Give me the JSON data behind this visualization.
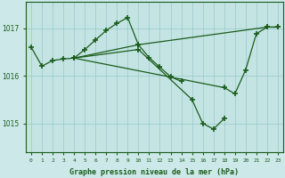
{
  "title": "Graphe pression niveau de la mer (hPa)",
  "bg_color": "#cce8e8",
  "plot_bg_color": "#c4e4e4",
  "grid_color": "#98c8c8",
  "line_color": "#1a5c1a",
  "xlim": [
    -0.5,
    23.5
  ],
  "ylim": [
    1014.4,
    1017.55
  ],
  "yticks": [
    1015,
    1016,
    1017
  ],
  "xticks": [
    0,
    1,
    2,
    3,
    4,
    5,
    6,
    7,
    8,
    9,
    10,
    11,
    12,
    13,
    14,
    15,
    16,
    17,
    18,
    19,
    20,
    21,
    22,
    23
  ],
  "series": [
    {
      "points": [
        [
          0,
          1016.6
        ],
        [
          1,
          1016.2
        ],
        [
          2,
          1016.32
        ],
        [
          3,
          1016.35
        ],
        [
          4,
          1016.37
        ]
      ]
    },
    {
      "points": [
        [
          4,
          1016.37
        ],
        [
          5,
          1016.55
        ],
        [
          6,
          1016.75
        ],
        [
          7,
          1016.95
        ],
        [
          8,
          1017.1
        ],
        [
          9,
          1017.22
        ],
        [
          10,
          1016.65
        ]
      ]
    },
    {
      "points": [
        [
          4,
          1016.37
        ],
        [
          10,
          1016.65
        ],
        [
          11,
          1016.38
        ],
        [
          12,
          1016.18
        ],
        [
          13,
          1015.98
        ],
        [
          14,
          1015.88
        ]
      ]
    },
    {
      "points": [
        [
          4,
          1016.37
        ],
        [
          10,
          1016.55
        ],
        [
          15,
          1015.5
        ],
        [
          16,
          1015.0
        ],
        [
          17,
          1014.88
        ],
        [
          18,
          1015.1
        ]
      ]
    },
    {
      "points": [
        [
          4,
          1016.37
        ],
        [
          18,
          1015.75
        ],
        [
          19,
          1015.62
        ],
        [
          20,
          1016.12
        ],
        [
          21,
          1016.88
        ],
        [
          22,
          1017.02
        ],
        [
          23,
          1017.02
        ]
      ]
    },
    {
      "points": [
        [
          10,
          1016.65
        ],
        [
          22,
          1017.02
        ],
        [
          23,
          1017.02
        ]
      ]
    }
  ]
}
